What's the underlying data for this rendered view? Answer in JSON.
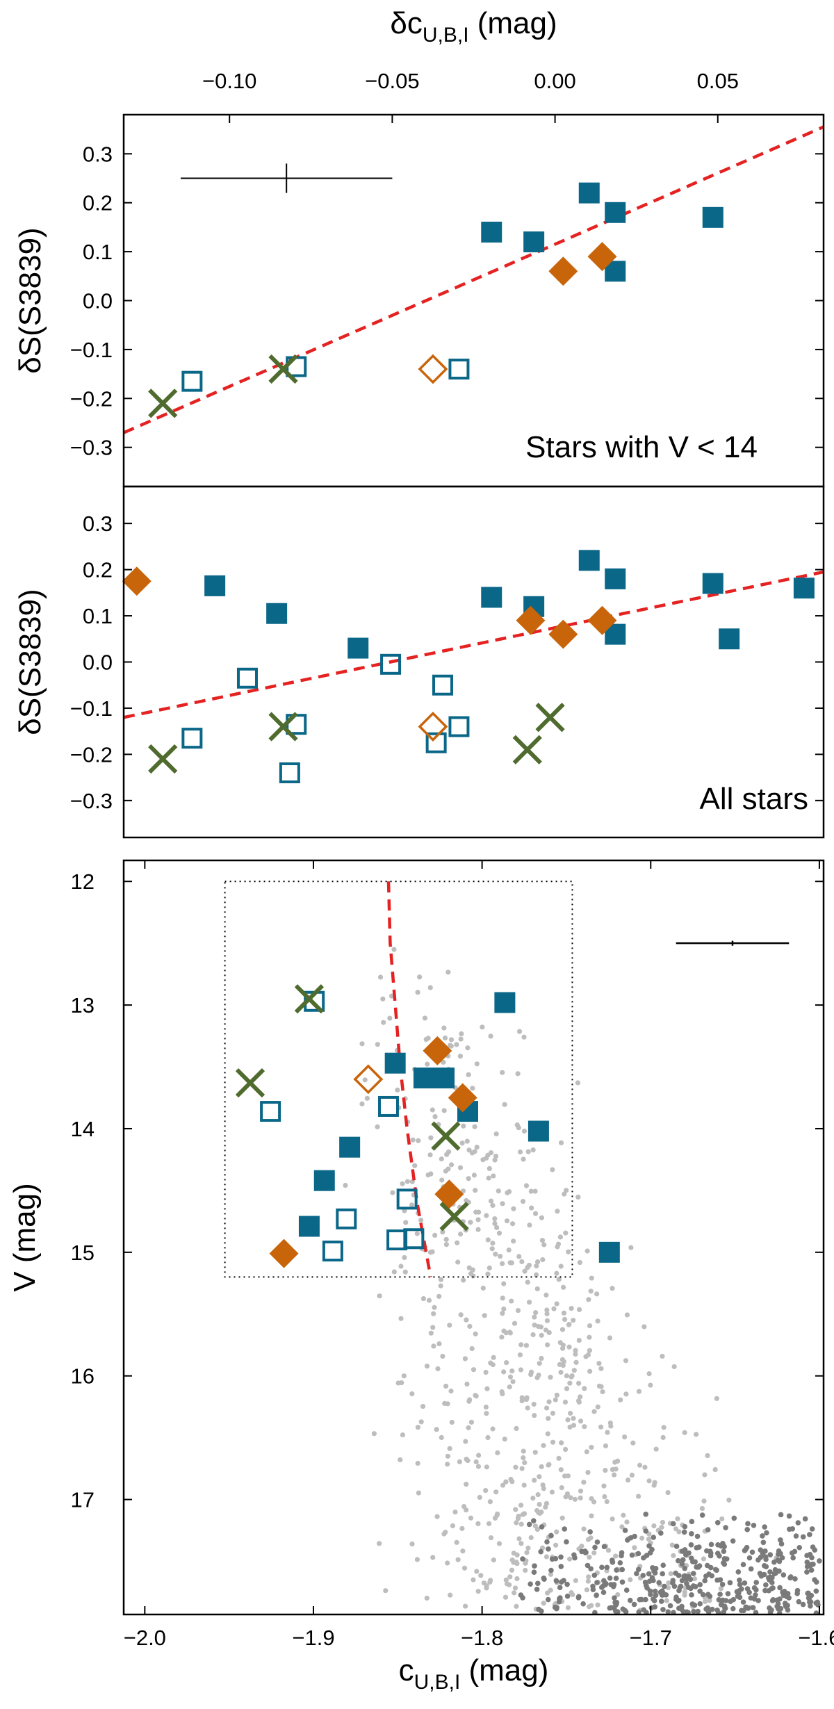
{
  "colors": {
    "blue": "#0B6788",
    "orange": "#C8640A",
    "green": "#4F6B2E",
    "fit": "#E52222",
    "cloud_light": "#BDBDBD",
    "cloud_dark": "#7A7A7A",
    "frame": "#000000"
  },
  "chart_data": [
    {
      "id": "top",
      "type": "scatter",
      "title": "",
      "panel_label": "Stars with V < 14",
      "ylabel": "δS(S3839)",
      "ylim": [
        -0.38,
        0.38
      ],
      "yticks": [
        -0.3,
        -0.2,
        -0.1,
        0.0,
        0.1,
        0.2,
        0.3
      ],
      "ytick_labels": [
        "−0.3",
        "−0.2",
        "−0.1",
        "0.0",
        "0.1",
        "0.2",
        "0.3"
      ],
      "top_axis": {
        "label": "δc",
        "label_sub": "U,B,I",
        "label_unit": " (mag)",
        "ticks": [
          -0.1,
          -0.05,
          0.0,
          0.05
        ],
        "tick_labels": [
          "−0.10",
          "−0.05",
          "0.00",
          "0.05"
        ],
        "range": [
          -0.1325,
          0.0825
        ]
      },
      "error_bar": {
        "x": -0.0825,
        "y": 0.25,
        "xerr": 0.0325,
        "yerr": 0.03
      },
      "fit_line": {
        "x": [
          -0.1325,
          0.0825
        ],
        "y": [
          -0.27,
          0.355
        ]
      },
      "series": [
        {
          "name": "blue filled",
          "marker": "square-filled",
          "color": "blue",
          "x": [
            -0.0195,
            -0.0065,
            0.0105,
            0.0185,
            0.0185,
            0.0485
          ],
          "y": [
            0.14,
            0.12,
            0.22,
            0.18,
            0.06,
            0.17
          ]
        },
        {
          "name": "blue open",
          "marker": "square-open",
          "color": "blue",
          "x": [
            -0.1115,
            -0.0795,
            -0.0295
          ],
          "y": [
            -0.165,
            -0.135,
            -0.14
          ]
        },
        {
          "name": "orange filled",
          "marker": "diamond-filled",
          "color": "orange",
          "x": [
            0.0025,
            0.0145
          ],
          "y": [
            0.06,
            0.09
          ]
        },
        {
          "name": "orange open",
          "marker": "diamond-open",
          "color": "orange",
          "x": [
            -0.0375
          ],
          "y": [
            -0.14
          ]
        },
        {
          "name": "green cross",
          "marker": "cross",
          "color": "green",
          "x": [
            -0.1205,
            -0.0835
          ],
          "y": [
            -0.21,
            -0.14
          ]
        }
      ]
    },
    {
      "id": "middle",
      "type": "scatter",
      "panel_label": "All stars",
      "ylabel": "δS(S3839)",
      "ylim": [
        -0.38,
        0.38
      ],
      "yticks": [
        -0.3,
        -0.2,
        -0.1,
        0.0,
        0.1,
        0.2,
        0.3
      ],
      "ytick_labels": [
        "−0.3",
        "−0.2",
        "−0.1",
        "0.0",
        "0.1",
        "0.2",
        "0.3"
      ],
      "xrange": [
        -0.1325,
        0.0825
      ],
      "fit_line": {
        "x": [
          -0.1325,
          0.0825
        ],
        "y": [
          -0.12,
          0.195
        ]
      },
      "series": [
        {
          "name": "blue filled",
          "marker": "square-filled",
          "color": "blue",
          "x": [
            -0.1045,
            -0.0855,
            -0.0605,
            -0.0195,
            -0.0065,
            0.0105,
            0.0185,
            0.0185,
            0.0485,
            0.0535,
            0.0765
          ],
          "y": [
            0.165,
            0.105,
            0.03,
            0.14,
            0.12,
            0.22,
            0.18,
            0.06,
            0.17,
            0.05,
            0.16
          ]
        },
        {
          "name": "blue open",
          "marker": "square-open",
          "color": "blue",
          "x": [
            -0.1115,
            -0.0945,
            -0.0815,
            -0.0795,
            -0.0505,
            -0.0345,
            -0.0365,
            -0.0295
          ],
          "y": [
            -0.165,
            -0.035,
            -0.24,
            -0.135,
            -0.005,
            -0.05,
            -0.175,
            -0.14
          ]
        },
        {
          "name": "orange filled",
          "marker": "diamond-filled",
          "color": "orange",
          "x": [
            -0.1285,
            -0.0075,
            0.0025,
            0.0145
          ],
          "y": [
            0.175,
            0.09,
            0.06,
            0.09
          ]
        },
        {
          "name": "orange open",
          "marker": "diamond-open",
          "color": "orange",
          "x": [
            -0.0375
          ],
          "y": [
            -0.14
          ]
        },
        {
          "name": "green cross",
          "marker": "cross",
          "color": "green",
          "x": [
            -0.1205,
            -0.0835,
            -0.0085,
            -0.0015
          ],
          "y": [
            -0.21,
            -0.14,
            -0.19,
            -0.12
          ]
        }
      ]
    },
    {
      "id": "bottom",
      "type": "scatter",
      "xlabel": "c",
      "xlabel_sub": "U,B,I",
      "xlabel_unit": " (mag)",
      "ylabel": "V (mag)",
      "xlim": [
        -2.0125,
        -1.5975
      ],
      "ylim": [
        17.93,
        11.83
      ],
      "xticks": [
        -2.0,
        -1.9,
        -1.8,
        -1.7,
        -1.6
      ],
      "xtick_labels": [
        "−2.0",
        "−1.9",
        "−1.8",
        "−1.7",
        "−1.6"
      ],
      "yticks": [
        12,
        13,
        14,
        15,
        16,
        17
      ],
      "ytick_labels": [
        "12",
        "13",
        "14",
        "15",
        "16",
        "17"
      ],
      "selection_box": {
        "x": [
          -1.9525,
          -1.7465
        ],
        "y": [
          12.0,
          15.2
        ]
      },
      "error_bar": {
        "x": -1.6515,
        "y": 12.5,
        "xerr": 0.0335,
        "yerr": 0.02
      },
      "fit_curve": {
        "x": [
          -1.8555,
          -1.8545,
          -1.8515,
          -1.8485,
          -1.8445,
          -1.8385,
          -1.8305
        ],
        "y": [
          12.0,
          12.5,
          13.0,
          13.5,
          14.0,
          14.6,
          15.2
        ]
      },
      "series": [
        {
          "name": "blue filled",
          "marker": "square-filled",
          "color": "blue",
          "x": [
            -1.7865,
            -1.8515,
            -1.8345,
            -1.8225,
            -1.8085,
            -1.8785,
            -1.7665,
            -1.8935,
            -1.9025,
            -1.7245
          ],
          "y": [
            12.98,
            13.47,
            13.59,
            13.59,
            13.86,
            14.15,
            14.02,
            14.42,
            14.79,
            15.0
          ]
        },
        {
          "name": "blue open",
          "marker": "square-open",
          "color": "blue",
          "x": [
            -1.8995,
            -1.9255,
            -1.8555,
            -1.8445,
            -1.8805,
            -1.8885,
            -1.8505,
            -1.8405
          ],
          "y": [
            12.97,
            13.86,
            13.82,
            14.57,
            14.73,
            14.99,
            14.9,
            14.89
          ]
        },
        {
          "name": "orange filled",
          "marker": "diamond-filled",
          "color": "orange",
          "x": [
            -1.8265,
            -1.8115,
            -1.8195,
            -1.9175
          ],
          "y": [
            13.37,
            13.75,
            14.53,
            15.01
          ]
        },
        {
          "name": "orange open",
          "marker": "diamond-open",
          "color": "orange",
          "x": [
            -1.8675
          ],
          "y": [
            13.6
          ]
        },
        {
          "name": "green cross",
          "marker": "cross",
          "color": "green",
          "x": [
            -1.9025,
            -1.9375,
            -1.8215,
            -1.8165
          ],
          "y": [
            12.95,
            13.63,
            14.06,
            14.71
          ]
        }
      ],
      "background_stars": {
        "description_count_light": 700,
        "description_count_dark": 430,
        "light_x_range": [
          -1.98,
          -1.62
        ],
        "light_y_range": [
          12.5,
          17.9
        ],
        "dark_x_range": [
          -1.78,
          -1.6
        ],
        "dark_y_range": [
          17.1,
          17.92
        ]
      }
    }
  ]
}
